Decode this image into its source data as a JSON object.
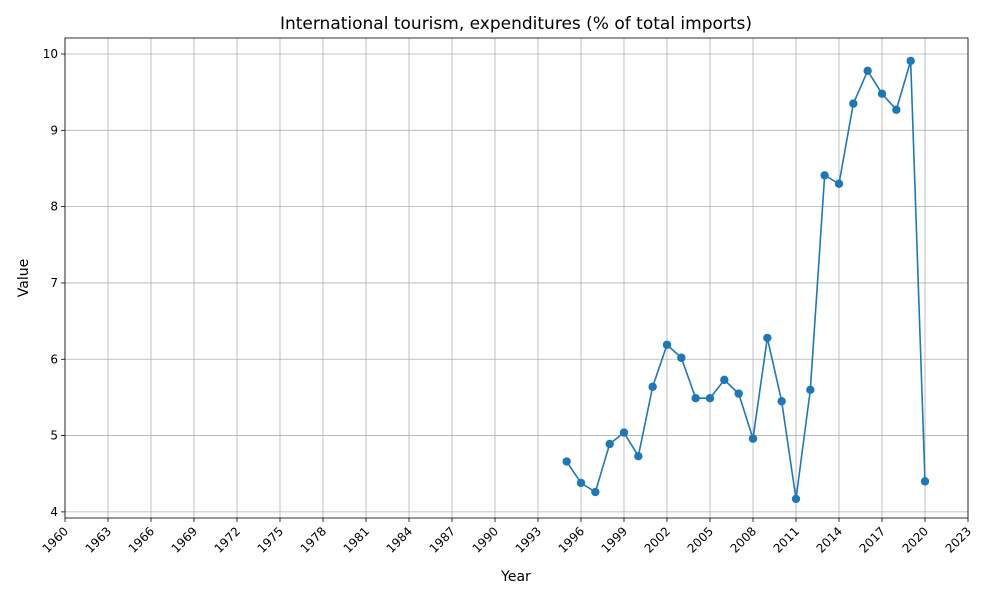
{
  "chart_data": {
    "type": "line",
    "title": "International tourism, expenditures (% of total imports)",
    "xlabel": "Year",
    "ylabel": "Value",
    "xlim": [
      1960,
      2023
    ],
    "ylim": [
      3.92,
      10.21
    ],
    "xticks": [
      1960,
      1963,
      1966,
      1969,
      1972,
      1975,
      1978,
      1981,
      1984,
      1987,
      1990,
      1993,
      1996,
      1999,
      2002,
      2005,
      2008,
      2011,
      2014,
      2017,
      2020,
      2023
    ],
    "yticks": [
      4,
      5,
      6,
      7,
      8,
      9,
      10
    ],
    "grid": true,
    "color": "#1f77b4",
    "series": [
      {
        "x": [
          1995,
          1996,
          1997,
          1998,
          1999,
          2000,
          2001,
          2002,
          2003,
          2004,
          2005,
          2006,
          2007,
          2008,
          2009,
          2010,
          2011,
          2012,
          2013,
          2014,
          2015,
          2016,
          2017,
          2018,
          2019,
          2020
        ],
        "values": [
          4.66,
          4.38,
          4.26,
          4.89,
          5.04,
          4.73,
          5.64,
          6.19,
          6.02,
          5.49,
          5.49,
          5.73,
          5.55,
          4.96,
          6.28,
          5.45,
          4.17,
          5.6,
          8.41,
          8.3,
          9.35,
          9.78,
          9.48,
          9.27,
          9.91,
          4.4
        ]
      }
    ]
  }
}
